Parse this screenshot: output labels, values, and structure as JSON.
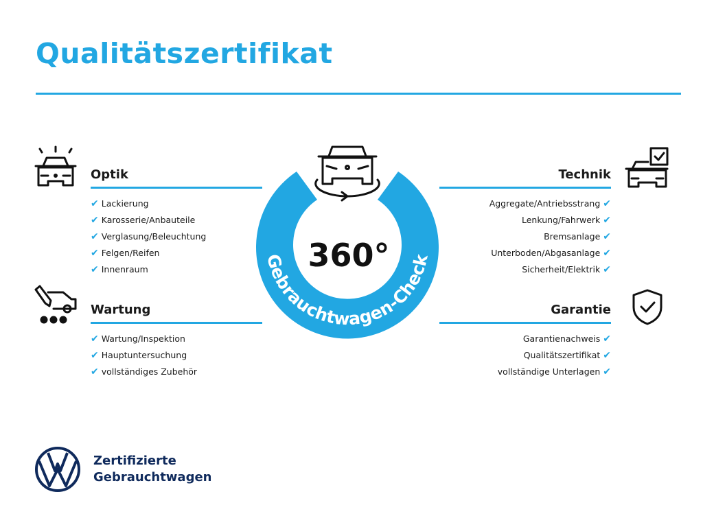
{
  "header": {
    "title": "Qualitätszertifikat"
  },
  "colors": {
    "accent": "#22a7e2",
    "brand_navy": "#0f2a5c",
    "text": "#1a1a1a"
  },
  "center_badge": {
    "value": "360°",
    "ring_text": "Gebrauchtwagen-Check",
    "icon": "car-rotate-icon"
  },
  "check_symbol": "✔",
  "sections": {
    "optik": {
      "title": "Optik",
      "icon": "car-lights-icon",
      "items": [
        "Lackierung",
        "Karosserie/Anbauteile",
        "Verglasung/Beleuchtung",
        "Felgen/Reifen",
        "Innenraum"
      ]
    },
    "wartung": {
      "title": "Wartung",
      "icon": "service-tools-icon",
      "items": [
        "Wartung/Inspektion",
        "Hauptuntersuchung",
        "vollständiges Zubehör"
      ]
    },
    "technik": {
      "title": "Technik",
      "icon": "car-checkbox-icon",
      "items": [
        "Aggregate/Antriebsstrang",
        "Lenkung/Fahrwerk",
        "Bremsanlage",
        "Unterboden/Abgasanlage",
        "Sicherheit/Elektrik"
      ]
    },
    "garantie": {
      "title": "Garantie",
      "icon": "shield-check-icon",
      "items": [
        "Garantienachweis",
        "Qualitätszertifikat",
        "vollständige Unterlagen"
      ]
    }
  },
  "footer": {
    "brand_line1": "Zertifizierte",
    "brand_line2": "Gebrauchtwagen",
    "logo": "vw-logo"
  }
}
